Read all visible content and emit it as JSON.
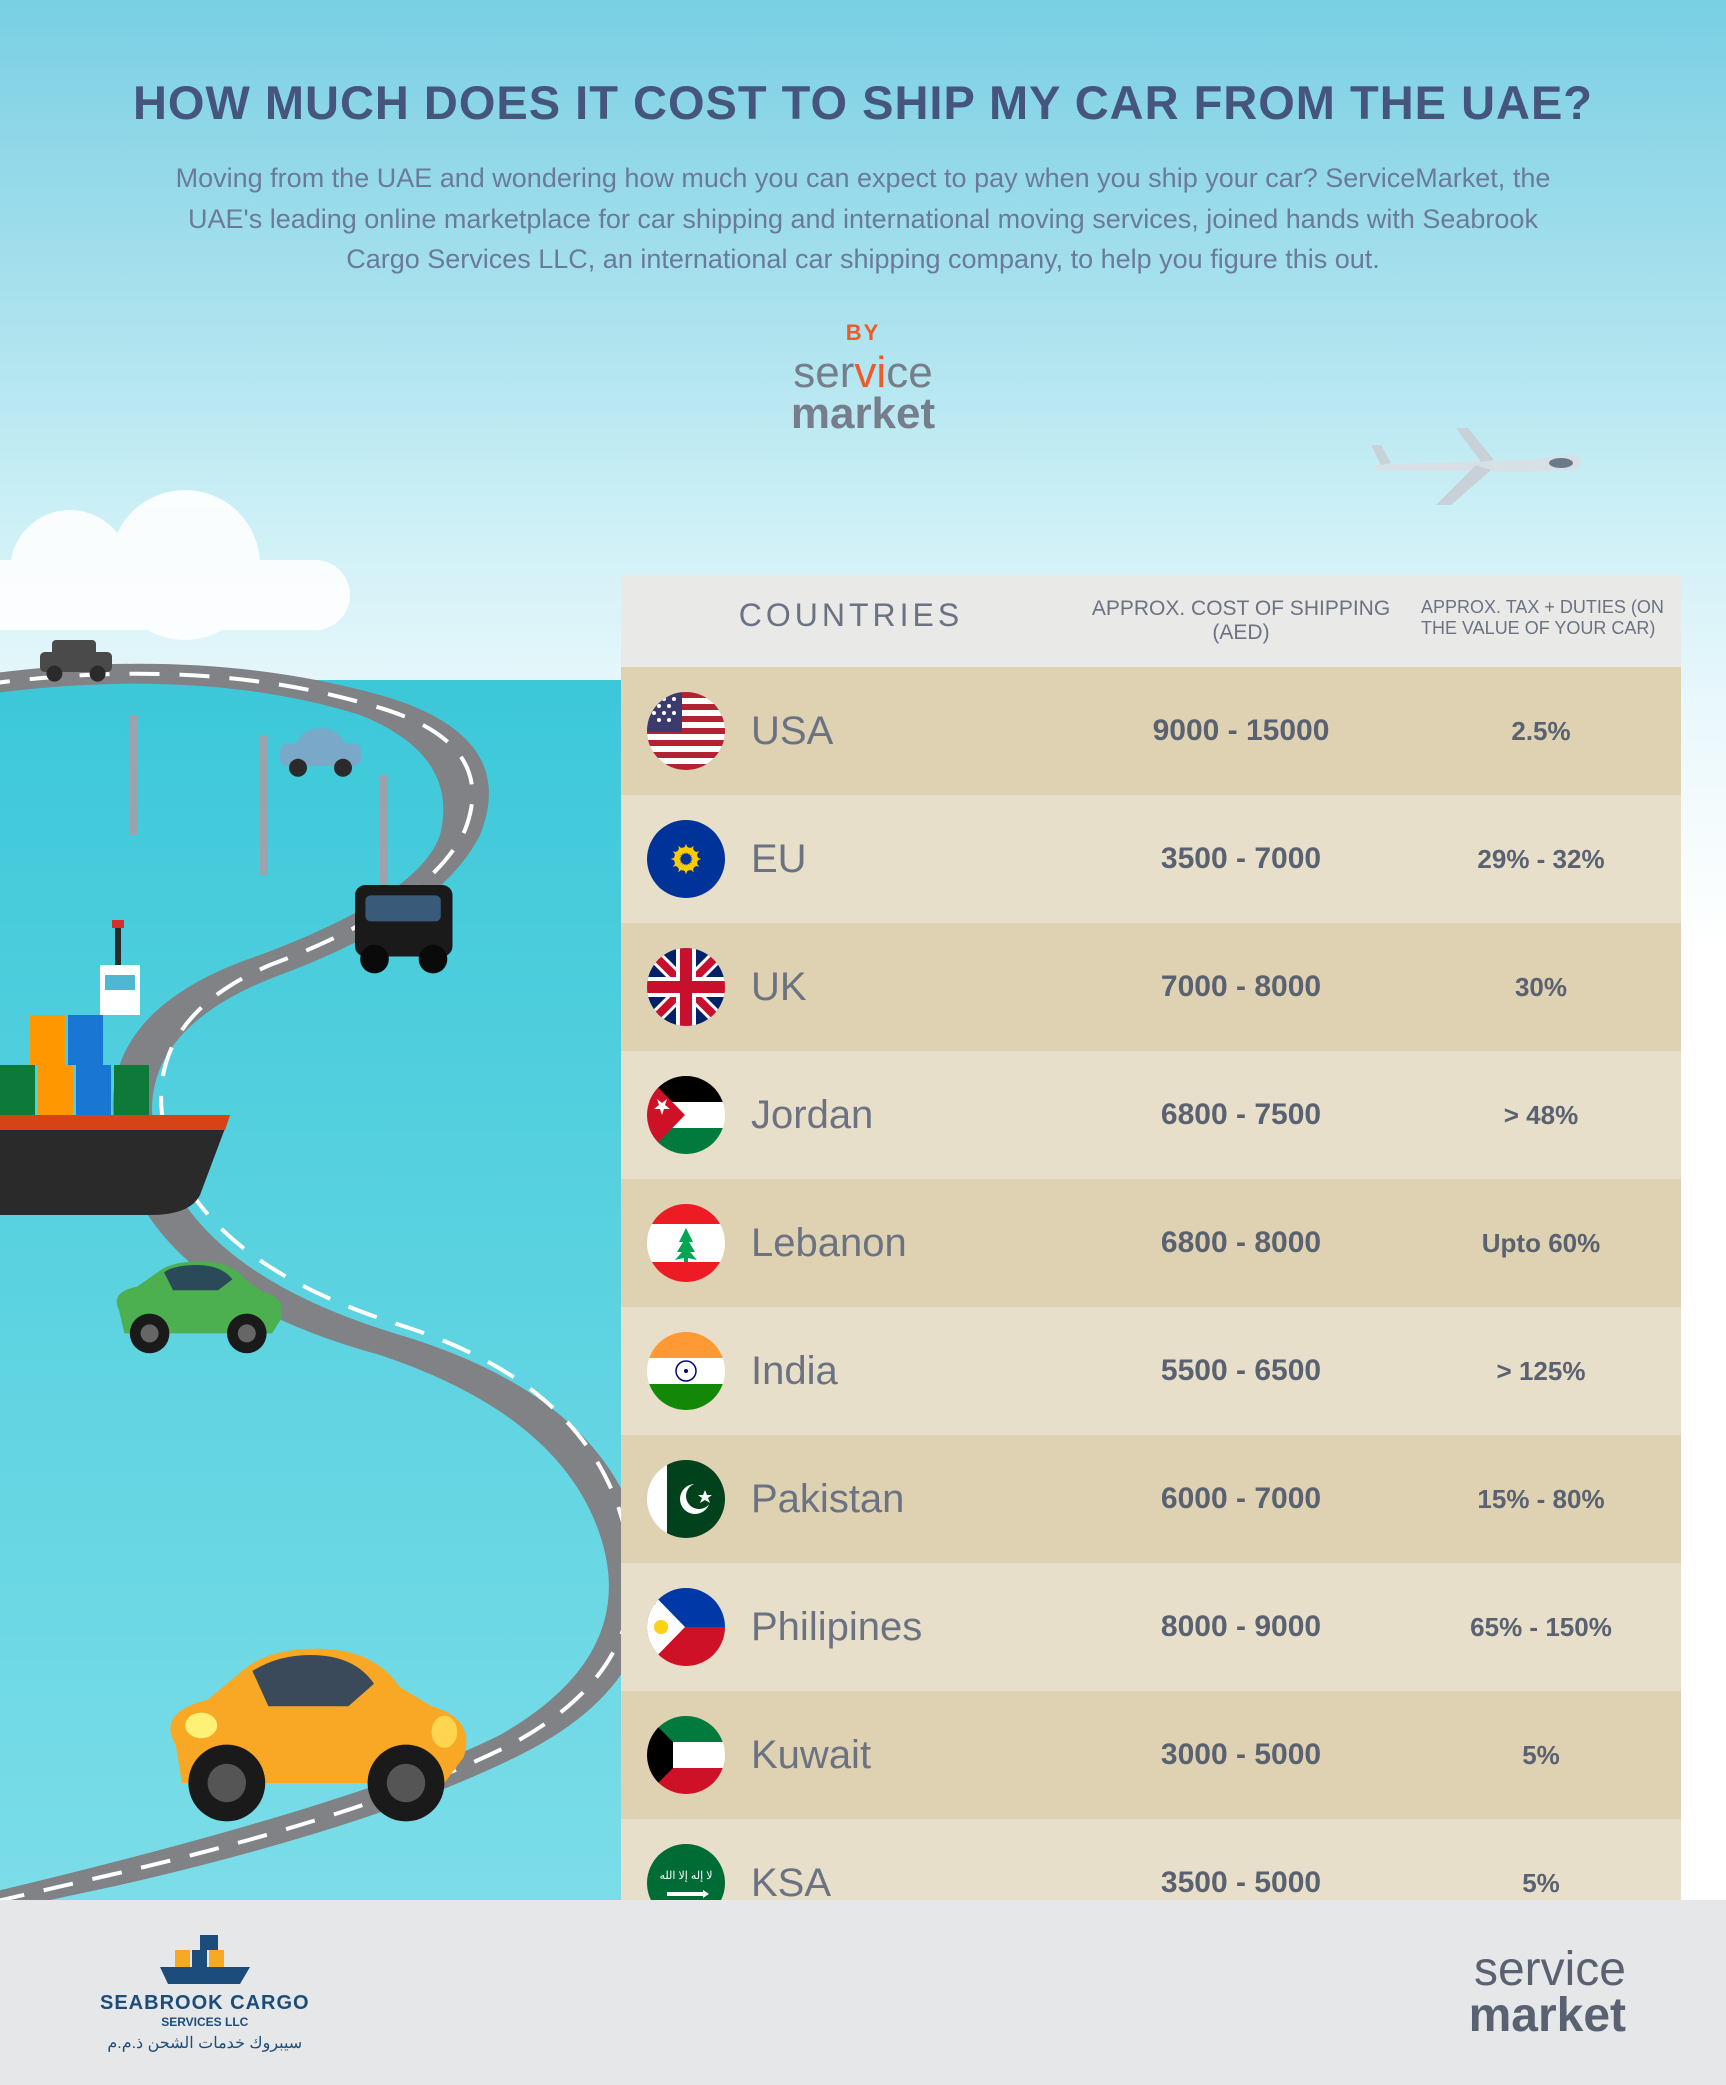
{
  "header": {
    "title": "HOW MUCH DOES IT COST TO SHIP MY CAR FROM THE UAE?",
    "subtitle": "Moving from the UAE and wondering how much you can expect to pay when you ship your car? ServiceMarket, the UAE's leading online marketplace for car shipping and international moving services, joined hands with Seabrook Cargo Services LLC, an international car shipping company, to help you figure this out.",
    "by": "BY",
    "logo_service": "ser",
    "logo_vi": "vi",
    "logo_ce": "ce",
    "logo_market": "market"
  },
  "table": {
    "headers": {
      "countries": "COUNTRIES",
      "cost": "APPROX. COST OF SHIPPING (AED)",
      "tax": "APPROX. TAX + DUTIES (ON THE VALUE OF YOUR CAR)"
    },
    "rows": [
      {
        "country": "USA",
        "cost": "9000 - 15000",
        "tax": "2.5%",
        "flag": "usa"
      },
      {
        "country": "EU",
        "cost": "3500 - 7000",
        "tax": "29% - 32%",
        "flag": "eu"
      },
      {
        "country": "UK",
        "cost": "7000 - 8000",
        "tax": "30%",
        "flag": "uk"
      },
      {
        "country": "Jordan",
        "cost": "6800 - 7500",
        "tax": "> 48%",
        "flag": "jordan"
      },
      {
        "country": "Lebanon",
        "cost": "6800 - 8000",
        "tax": "Upto 60%",
        "flag": "lebanon"
      },
      {
        "country": "India",
        "cost": "5500 - 6500",
        "tax": "> 125%",
        "flag": "india"
      },
      {
        "country": "Pakistan",
        "cost": "6000 - 7000",
        "tax": "15% - 80%",
        "flag": "pakistan"
      },
      {
        "country": "Philipines",
        "cost": "8000 - 9000",
        "tax": "65% - 150%",
        "flag": "philippines"
      },
      {
        "country": "Kuwait",
        "cost": "3000 - 5000",
        "tax": "5%",
        "flag": "kuwait"
      },
      {
        "country": "KSA",
        "cost": "3500 - 5000",
        "tax": "5%",
        "flag": "ksa"
      }
    ]
  },
  "footer": {
    "seabrook_name": "SEABROOK CARGO",
    "seabrook_sub": "SERVICES LLC",
    "seabrook_arabic": "سيبروك خدمات الشحن ذ.م.م",
    "sm_service": "service",
    "sm_market": "market"
  },
  "colors": {
    "title": "#45557e",
    "subtitle": "#6b7a9a",
    "accent": "#f05a28",
    "table_text": "#6b7282",
    "table_bold": "#5a6170",
    "row_dark": "#ded2b2",
    "row_light": "#e7dfc9",
    "header_bg": "#e9e9e7",
    "sea": "#3cc8d9",
    "footer_bg": "#e6e7e8"
  }
}
